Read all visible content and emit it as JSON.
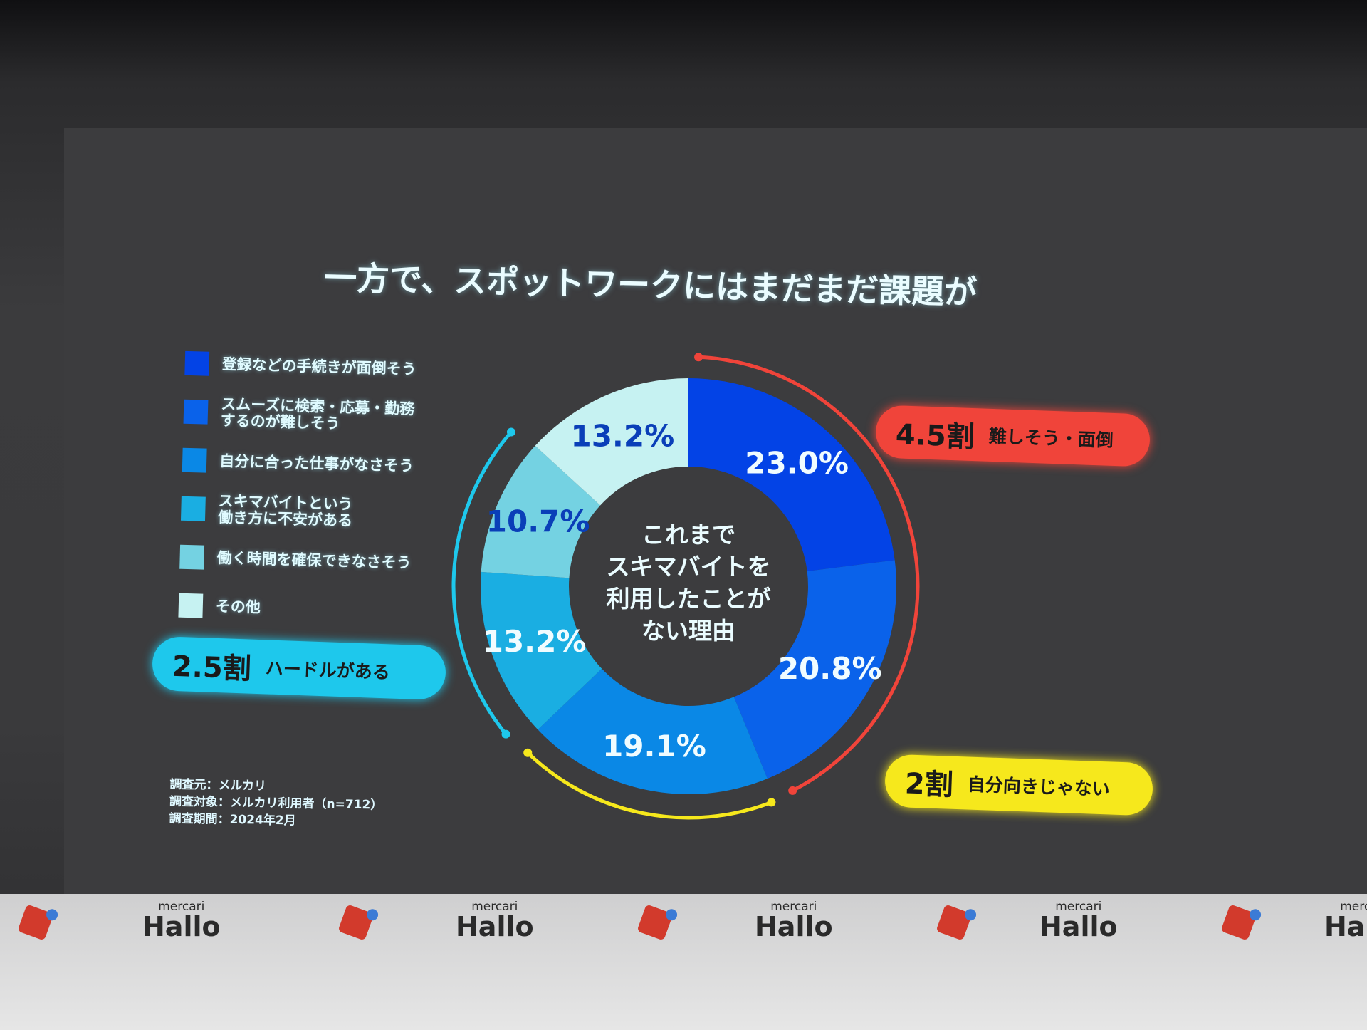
{
  "title": "一方で、スポットワークにはまだまだ課題が",
  "chart_data": {
    "type": "pie",
    "style": "donut",
    "center_label": [
      "これまで",
      "スキマバイトを",
      "利用したことが",
      "ない理由"
    ],
    "categories": [
      "登録などの手続きが面倒そう",
      "スムーズに検索・応募・勤務\nするのが難しそう",
      "自分に合った仕事がなさそう",
      "スキマバイトという\n働き方に不安がある",
      "働く時間を確保できなさそう",
      "その他"
    ],
    "values": [
      23.0,
      20.8,
      19.1,
      13.2,
      10.7,
      13.2
    ],
    "labels": [
      "23.0%",
      "20.8%",
      "19.1%",
      "13.2%",
      "10.7%",
      "13.2%"
    ],
    "colors": [
      "#0343e6",
      "#0a62ea",
      "#0a88e6",
      "#1aaee2",
      "#74d2e2",
      "#c6f2f2"
    ],
    "legend_position": "left",
    "groups": [
      {
        "big": "4.5割",
        "text": "難しそう・面倒",
        "color": "#f0443a",
        "covers": [
          0,
          1
        ]
      },
      {
        "big": "2割",
        "text": "自分向きじゃない",
        "color": "#f6e81c",
        "covers": [
          2
        ]
      },
      {
        "big": "2.5割",
        "text": "ハードルがある",
        "color": "#1ec8ec",
        "covers": [
          3,
          4
        ]
      }
    ]
  },
  "notes": [
    "調査元：メルカリ",
    "調査対象：メルカリ利用者（n=712）",
    "調査期間：2024年2月"
  ],
  "banner": {
    "brand_small": "mercari",
    "brand_big": "Hallo"
  }
}
